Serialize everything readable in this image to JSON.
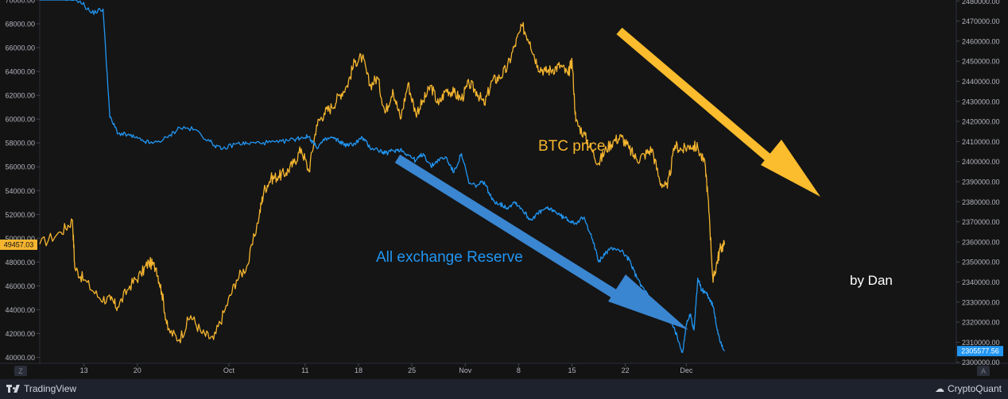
{
  "chart_data": {
    "type": "line",
    "title": "",
    "left_axis": {
      "ylim": [
        39500,
        70000
      ],
      "ticks": [
        40000,
        42000,
        44000,
        46000,
        48000,
        50000,
        52000,
        54000,
        56000,
        58000,
        60000,
        62000,
        64000,
        66000,
        68000,
        70000
      ],
      "tick_labels": [
        "40000.00",
        "42000.00",
        "44000.00",
        "46000.00",
        "48000.00",
        "50000.00",
        "52000.00",
        "54000.00",
        "56000.00",
        "58000.00",
        "60000.00",
        "62000.00",
        "64000.00",
        "66000.00",
        "68000.00",
        "70000.00"
      ]
    },
    "right_axis": {
      "ylim": [
        2299500,
        2480500
      ],
      "ticks": [
        2300000,
        2310000,
        2320000,
        2330000,
        2340000,
        2350000,
        2360000,
        2370000,
        2380000,
        2390000,
        2400000,
        2410000,
        2420000,
        2430000,
        2440000,
        2450000,
        2460000,
        2470000,
        2480000
      ],
      "tick_labels": [
        "2300000.00",
        "2310000.00",
        "2320000.00",
        "2330000.00",
        "2340000.00",
        "2350000.00",
        "2360000.00",
        "2370000.00",
        "2380000.00",
        "2390000.00",
        "2400000.00",
        "2410000.00",
        "2420000.00",
        "2430000.00",
        "2440000.00",
        "2450000.00",
        "2460000.00",
        "2470000.00",
        "2480000.00"
      ]
    },
    "x_axis": {
      "range_days": [
        -24.8,
        95.4
      ],
      "ticks": [
        {
          "day": -19,
          "label": "13"
        },
        {
          "day": -12,
          "label": "20"
        },
        {
          "day": 0,
          "label": "Oct"
        },
        {
          "day": 10,
          "label": "11"
        },
        {
          "day": 17,
          "label": "18"
        },
        {
          "day": 24,
          "label": "25"
        },
        {
          "day": 31,
          "label": "Nov"
        },
        {
          "day": 38,
          "label": "8"
        },
        {
          "day": 45,
          "label": "15"
        },
        {
          "day": 52,
          "label": "22"
        },
        {
          "day": 60,
          "label": "Dec"
        }
      ]
    },
    "series": [
      {
        "name": "BTC price",
        "color": "#f5b52f",
        "axis": "left",
        "last_value_label": "49457.03",
        "x": [
          -24.8,
          -22,
          -20.5,
          -20.2,
          -19,
          -17,
          -15.5,
          -14.6,
          -13,
          -11.5,
          -10.5,
          -9.5,
          -8.8,
          -8,
          -6.5,
          -5,
          -3.5,
          -2,
          -0.5,
          1,
          2.5,
          4,
          4.6,
          5.5,
          6.5,
          7.5,
          8.5,
          9.5,
          10.5,
          11.5,
          12.5,
          13.5,
          14.5,
          15.5,
          16.5,
          17.5,
          18.5,
          19.5,
          20.5,
          21.5,
          22.5,
          23.5,
          24.5,
          25.5,
          26.5,
          27.5,
          28.5,
          29.5,
          30.5,
          31.5,
          32.5,
          33.5,
          34.5,
          35.5,
          36.5,
          37.5,
          38.5,
          39.5,
          40.5,
          41.5,
          42.5,
          43.5,
          44.5,
          45,
          45.5,
          46.5,
          47.5,
          48.5,
          49.5,
          50.5,
          51.5,
          52.5,
          53.5,
          54.5,
          55.5,
          56.5,
          57.5,
          58.5,
          59.5,
          60.5,
          61.5,
          62.5,
          63,
          63.5,
          64,
          64.5,
          65
        ],
        "y": [
          49500,
          50500,
          51500,
          47500,
          46500,
          45000,
          44800,
          44200,
          46000,
          47000,
          48000,
          47500,
          45500,
          42300,
          41500,
          43500,
          42000,
          41500,
          44000,
          46500,
          47800,
          52000,
          54000,
          55000,
          55200,
          55500,
          56300,
          57500,
          55600,
          59500,
          60500,
          61000,
          62000,
          62800,
          64800,
          65200,
          62800,
          63500,
          60500,
          62500,
          60000,
          63000,
          60500,
          61500,
          62800,
          61200,
          62500,
          62200,
          61700,
          63000,
          62300,
          61200,
          63200,
          63500,
          64300,
          66200,
          67800,
          66500,
          64500,
          64000,
          64200,
          64500,
          63700,
          65000,
          59800,
          58800,
          57500,
          56300,
          57500,
          58200,
          58500,
          57500,
          56600,
          57000,
          57500,
          54800,
          54200,
          57800,
          57400,
          57800,
          57600,
          56000,
          52000,
          46300,
          48000,
          49200,
          49457
        ]
      },
      {
        "name": "All exchange Reserve",
        "color": "#2196f3",
        "axis": "right",
        "last_value_label": "2305577.56",
        "x": [
          -24.8,
          -22,
          -19.5,
          -18,
          -16.5,
          -15.6,
          -14.5,
          -13,
          -11.5,
          -10,
          -8,
          -6.5,
          -4.5,
          -2.5,
          -1,
          1,
          2.5,
          4.5,
          6.5,
          8.5,
          9.5,
          10.5,
          11.5,
          12.5,
          13.5,
          14.5,
          15.5,
          16.5,
          17.5,
          18.5,
          19.5,
          20.5,
          21.5,
          22.5,
          23.5,
          24.5,
          25.5,
          26.5,
          27.5,
          28.5,
          29.5,
          30.5,
          31.5,
          32.5,
          33.5,
          34.5,
          35.5,
          36.5,
          37.5,
          38.5,
          39.5,
          40.5,
          41.5,
          42.5,
          43.5,
          44.5,
          45.5,
          46.5,
          47.5,
          48.5,
          49.5,
          50.5,
          51.5,
          52.5,
          53.5,
          54.5,
          55.5,
          56.5,
          57.5,
          58.5,
          59.5,
          60,
          60.5,
          61,
          61.5,
          62,
          62.5,
          63,
          63.5,
          64,
          64.5,
          65
        ],
        "y": [
          2483000,
          2482000,
          2480000,
          2474000,
          2476000,
          2422000,
          2414000,
          2413000,
          2410500,
          2409000,
          2412000,
          2417000,
          2416000,
          2410000,
          2406000,
          2409000,
          2409000,
          2409500,
          2409500,
          2411000,
          2412000,
          2412500,
          2407000,
          2410500,
          2412000,
          2410000,
          2408000,
          2409000,
          2412000,
          2407000,
          2406000,
          2404000,
          2405500,
          2406000,
          2403500,
          2400500,
          2404000,
          2397500,
          2401000,
          2402000,
          2394500,
          2404000,
          2389000,
          2388000,
          2390000,
          2381000,
          2379000,
          2377000,
          2380000,
          2376000,
          2371000,
          2374000,
          2376500,
          2376000,
          2373000,
          2371000,
          2369500,
          2372000,
          2364000,
          2350000,
          2355000,
          2357000,
          2355500,
          2351000,
          2342000,
          2336000,
          2330000,
          2326000,
          2322000,
          2316000,
          2305000,
          2319000,
          2324000,
          2316000,
          2342000,
          2336000,
          2335000,
          2332000,
          2328000,
          2317000,
          2310000,
          2305578
        ]
      }
    ],
    "annotations": [
      {
        "text": "BTC price",
        "color": "#f5b52f"
      },
      {
        "text": "All exchange Reserve",
        "color": "#2196f3"
      },
      {
        "text": "by Dan",
        "color": "#ffffff"
      }
    ],
    "grid": false,
    "legend": "none"
  },
  "axis_corner_labels": {
    "left": "Z",
    "right": "A"
  },
  "footer": {
    "left_brand": "TradingView",
    "right_brand": "CryptoQuant"
  }
}
